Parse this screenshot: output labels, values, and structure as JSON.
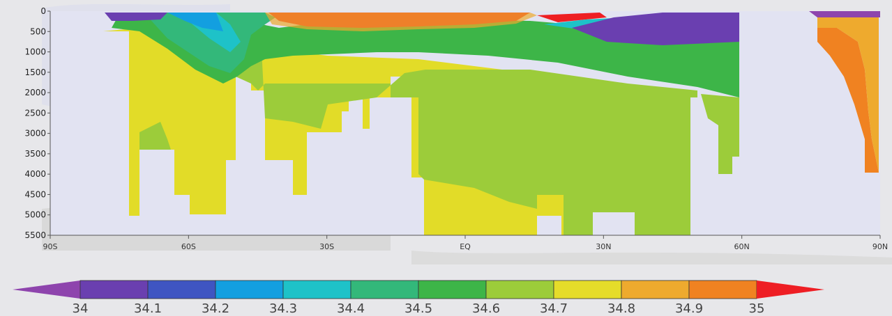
{
  "chart_data": {
    "type": "heatmap",
    "title": "",
    "xlabel": "",
    "ylabel": "",
    "xlim": [
      -90,
      90
    ],
    "ylim": [
      5500,
      0
    ],
    "y_ticks": [
      "0",
      "500",
      "1000",
      "1500",
      "2000",
      "2500",
      "3000",
      "3500",
      "4000",
      "4500",
      "5000",
      "5500"
    ],
    "x_ticks": [
      "90S",
      "60S",
      "30S",
      "EQ",
      "30N",
      "60N",
      "90N"
    ],
    "colorbar": {
      "levels": [
        "34",
        "34.1",
        "34.2",
        "34.3",
        "34.4",
        "34.5",
        "34.6",
        "34.7",
        "34.8",
        "34.9",
        "35"
      ],
      "colors": [
        "#8e44ad",
        "#6a3fb0",
        "#3f55c2",
        "#139fe0",
        "#1ec2c8",
        "#33b87a",
        "#3db548",
        "#9ccc3a",
        "#e5dc2a",
        "#eeaa2e",
        "#f08221",
        "#ee1e24"
      ]
    },
    "regions": [
      {
        "label": "34.7",
        "description": "deep Southern Ocean water south of 45S"
      },
      {
        "label": "34.6",
        "description": "deep water mass 35S to 58N"
      },
      {
        "label": "34.7",
        "description": "bottom water 5S to 15N below 4500"
      },
      {
        "label": "35",
        "description": "subtropical surface 35S to 30N"
      },
      {
        "label": "34.9",
        "description": "Arctic / Nordic deep water north of 75N"
      }
    ]
  }
}
